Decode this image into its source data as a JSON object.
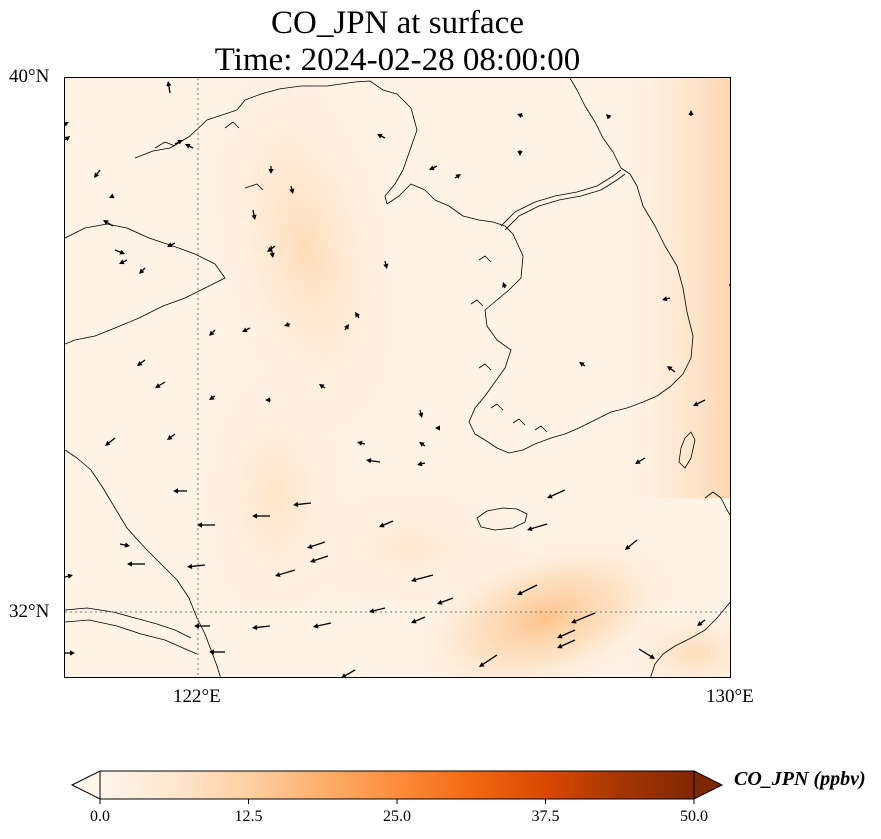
{
  "title": {
    "line1": "CO_JPN at surface",
    "line2": "Time: 2024-02-28 08:00:00"
  },
  "map": {
    "lat_labels": [
      "40°N",
      "32°N"
    ],
    "lon_labels": [
      "122°E",
      "130°E"
    ],
    "extent": {
      "lon_min": 120,
      "lon_max": 130,
      "lat_min": 31,
      "lat_max": 40
    },
    "gridlines": {
      "lon": [
        122,
        130
      ],
      "lat": [
        32,
        40
      ]
    },
    "field_max_ppbv": 18
  },
  "colorbar": {
    "label": "CO_JPN (ppbv)",
    "ticks": [
      "0.0",
      "12.5",
      "25.0",
      "37.5",
      "50.0"
    ],
    "colors": [
      "#fff5eb",
      "#fee6ce",
      "#fdd0a2",
      "#fdae6b",
      "#fd8d3c",
      "#f16913",
      "#d94801",
      "#a63603",
      "#7f2704"
    ],
    "extend": "max"
  }
}
